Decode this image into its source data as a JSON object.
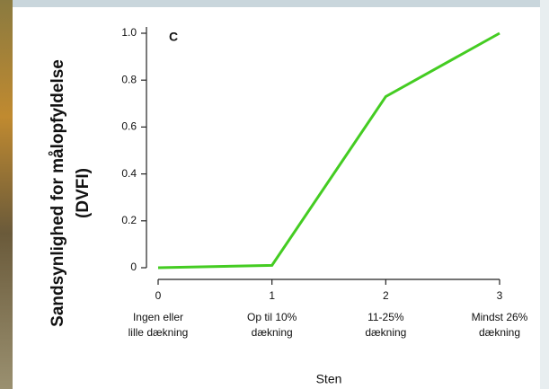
{
  "chart_data": {
    "type": "line",
    "panel_label": "C",
    "ylabel": [
      "Sandsynlighed for målopfyldelse",
      "(DVFI)"
    ],
    "xlabel": "Sten",
    "x": [
      0,
      1,
      2,
      3
    ],
    "categories": [
      [
        "Ingen eller",
        "lille dækning"
      ],
      [
        "Op til 10%",
        "dækning"
      ],
      [
        "11-25%",
        "dækning"
      ],
      [
        "Mindst 26%",
        "dækning"
      ]
    ],
    "values": [
      0,
      0.01,
      0.73,
      1
    ],
    "color": "#44cc22",
    "xlim": [
      0,
      3
    ],
    "xticks": [
      0,
      1,
      2,
      3
    ],
    "ylim": [
      0,
      1
    ],
    "yticks": [
      0,
      0.2,
      0.4,
      0.6,
      0.8,
      {
        "value": 1,
        "label": "1.0"
      }
    ]
  }
}
